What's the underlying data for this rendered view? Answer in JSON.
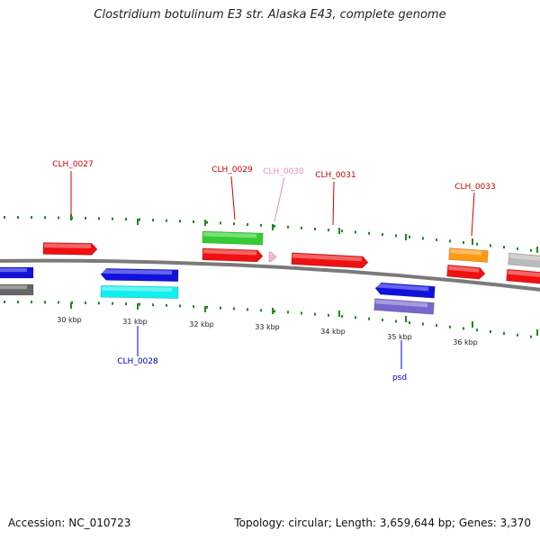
{
  "title": "Clostridium botulinum E3 str. Alaska E43, complete genome",
  "footer": {
    "accession": "Accession: NC_010723",
    "summary": "Topology: circular; Length: 3,659,644 bp; Genes: 3,370"
  },
  "scale_labels": [
    "30 kbp",
    "31 kbp",
    "32 kbp",
    "33 kbp",
    "34 kbp",
    "35 kbp",
    "36 kbp"
  ],
  "gene_labels": [
    {
      "text": "CLH_0027",
      "color": "#cc0000"
    },
    {
      "text": "CLH_0028",
      "color": "#0000cc"
    },
    {
      "text": "CLH_0029",
      "color": "#cc0000"
    },
    {
      "text": "CLH_0030",
      "color": "#ee88cc"
    },
    {
      "text": "CLH_0031",
      "color": "#cc0000"
    },
    {
      "text": "CLH_0033",
      "color": "#cc0000"
    },
    {
      "text": "psd",
      "color": "#0000cc"
    }
  ],
  "colors": {
    "backbone": "#7a7a7a",
    "tick": "#1f8a1f",
    "red": "#ee1111",
    "blue": "#1111dd",
    "cyan": "#11eeee",
    "green": "#33cc33",
    "pink": "#ffaadd",
    "purple": "#7766cc",
    "orange": "#ff9911",
    "gray": "#bbbbbb",
    "darkgray": "#666666"
  }
}
